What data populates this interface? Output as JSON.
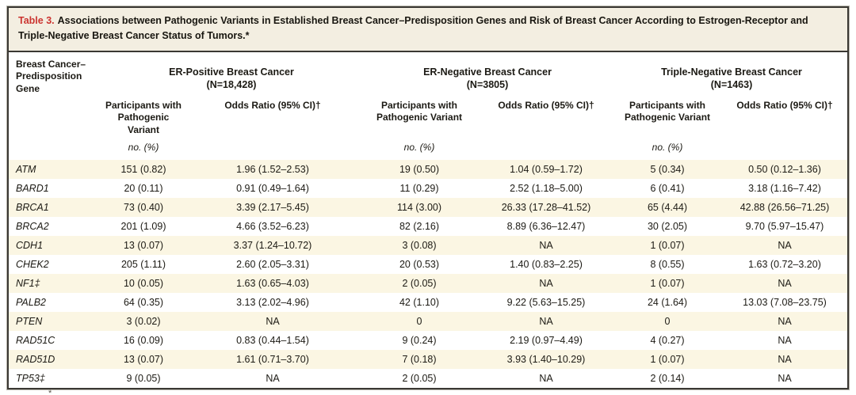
{
  "title": {
    "label": "Table 3.",
    "text": "Associations between Pathogenic Variants in Established Breast Cancer–Predisposition Genes and Risk of Breast Cancer According to Estrogen-Receptor and Triple-Negative Breast Cancer Status of Tumors.*"
  },
  "header": {
    "row_label": "Breast Cancer– Predisposition Gene",
    "groups": [
      {
        "name": "ER-Positive Breast Cancer",
        "n": "(N=18,428)"
      },
      {
        "name": "ER-Negative Breast Cancer",
        "n": "(N=3805)"
      },
      {
        "name": "Triple-Negative Breast Cancer",
        "n": "(N=1463)"
      }
    ],
    "subcols": {
      "participants": "Participants with Pathogenic Variant",
      "odds": "Odds Ratio (95% CI)†"
    },
    "units": "no. (%)"
  },
  "rows": [
    {
      "gene": "ATM",
      "cells": [
        "151 (0.82)",
        "1.96 (1.52–2.53)",
        "19 (0.50)",
        "1.04 (0.59–1.72)",
        "5 (0.34)",
        "0.50 (0.12–1.36)"
      ]
    },
    {
      "gene": "BARD1",
      "cells": [
        "20 (0.11)",
        "0.91 (0.49–1.64)",
        "11 (0.29)",
        "2.52 (1.18–5.00)",
        "6 (0.41)",
        "3.18 (1.16–7.42)"
      ]
    },
    {
      "gene": "BRCA1",
      "cells": [
        "73 (0.40)",
        "3.39 (2.17–5.45)",
        "114 (3.00)",
        "26.33 (17.28–41.52)",
        "65 (4.44)",
        "42.88 (26.56–71.25)"
      ]
    },
    {
      "gene": "BRCA2",
      "cells": [
        "201 (1.09)",
        "4.66 (3.52–6.23)",
        "82 (2.16)",
        "8.89 (6.36–12.47)",
        "30 (2.05)",
        "9.70 (5.97–15.47)"
      ]
    },
    {
      "gene": "CDH1",
      "cells": [
        "13 (0.07)",
        "3.37 (1.24–10.72)",
        "3 (0.08)",
        "NA",
        "1 (0.07)",
        "NA"
      ]
    },
    {
      "gene": "CHEK2",
      "cells": [
        "205 (1.11)",
        "2.60 (2.05–3.31)",
        "20 (0.53)",
        "1.40 (0.83–2.25)",
        "8 (0.55)",
        "1.63 (0.72–3.20)"
      ]
    },
    {
      "gene": "NF1‡",
      "cells": [
        "10 (0.05)",
        "1.63 (0.65–4.03)",
        "2 (0.05)",
        "NA",
        "1 (0.07)",
        "NA"
      ]
    },
    {
      "gene": "PALB2",
      "cells": [
        "64 (0.35)",
        "3.13 (2.02–4.96)",
        "42 (1.10)",
        "9.22 (5.63–15.25)",
        "24 (1.64)",
        "13.03 (7.08–23.75)"
      ]
    },
    {
      "gene": "PTEN",
      "cells": [
        "3 (0.02)",
        "NA",
        "0",
        "NA",
        "0",
        "NA"
      ]
    },
    {
      "gene": "RAD51C",
      "cells": [
        "16 (0.09)",
        "0.83 (0.44–1.54)",
        "9 (0.24)",
        "2.19 (0.97–4.49)",
        "4 (0.27)",
        "NA"
      ]
    },
    {
      "gene": "RAD51D",
      "cells": [
        "13 (0.07)",
        "1.61 (0.71–3.70)",
        "7 (0.18)",
        "3.93 (1.40–10.29)",
        "1 (0.07)",
        "NA"
      ]
    },
    {
      "gene": "TP53‡",
      "cells": [
        "9 (0.05)",
        "NA",
        "2 (0.05)",
        "NA",
        "2 (0.14)",
        "NA"
      ]
    }
  ],
  "footnote_fragment": "*",
  "colors": {
    "accent_red": "#cb3430",
    "stripe": "#fbf6e3",
    "title_band": "#f3eee1",
    "border": "#3a3833"
  }
}
